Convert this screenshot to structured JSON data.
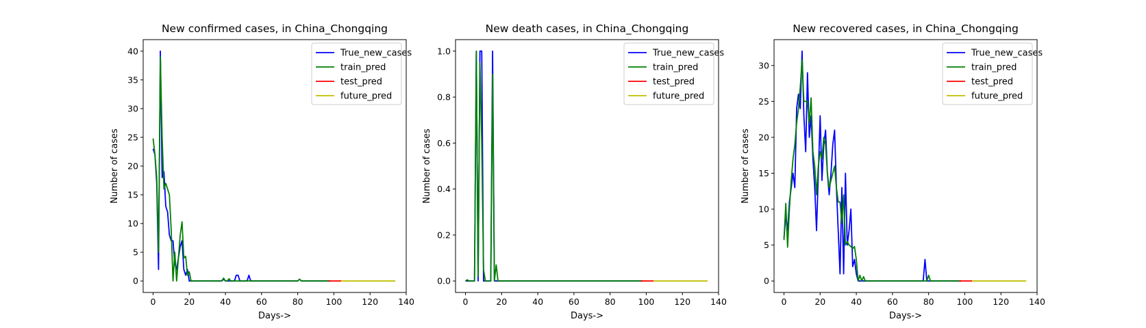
{
  "chart_data": [
    {
      "type": "line",
      "title": "New confirmed cases, in China_Chongqing",
      "xlabel": "Days->",
      "ylabel": "Number of cases",
      "xlim": [
        -5.5,
        140
      ],
      "ylim": [
        -2,
        42
      ],
      "xticks": [
        0,
        20,
        40,
        60,
        80,
        100,
        120,
        140
      ],
      "yticks": [
        0,
        5,
        10,
        15,
        20,
        25,
        30,
        35,
        40
      ],
      "grid": false,
      "legend_position": "top-right",
      "series": [
        {
          "name": "True_new_cases",
          "color": "#0000ff",
          "points": [
            [
              0,
              23
            ],
            [
              1,
              22
            ],
            [
              2,
              17
            ],
            [
              3,
              2
            ],
            [
              4,
              40
            ],
            [
              5,
              18
            ],
            [
              6,
              19
            ],
            [
              7,
              13
            ],
            [
              8,
              12
            ],
            [
              9,
              8
            ],
            [
              10,
              7
            ],
            [
              11,
              7
            ],
            [
              12,
              3
            ],
            [
              13,
              2
            ],
            [
              14,
              4
            ],
            [
              15,
              6
            ],
            [
              16,
              7
            ],
            [
              17,
              2
            ],
            [
              18,
              1
            ],
            [
              19,
              2
            ],
            [
              20,
              0
            ],
            [
              38,
              0
            ],
            [
              39,
              0.3
            ],
            [
              40,
              0
            ],
            [
              45,
              0
            ],
            [
              46,
              1
            ],
            [
              47,
              1
            ],
            [
              48,
              0
            ],
            [
              52,
              0
            ],
            [
              53,
              1
            ],
            [
              54,
              0
            ],
            [
              80,
              0
            ],
            [
              81,
              0.3
            ],
            [
              82,
              0
            ],
            [
              98,
              0
            ]
          ]
        },
        {
          "name": "train_pred",
          "color": "#008000",
          "points": [
            [
              0,
              24.8
            ],
            [
              1,
              22
            ],
            [
              2,
              18
            ],
            [
              3,
              5
            ],
            [
              4,
              39
            ],
            [
              5,
              25
            ],
            [
              6,
              16
            ],
            [
              7,
              17
            ],
            [
              8,
              16
            ],
            [
              9,
              15
            ],
            [
              10,
              9
            ],
            [
              11,
              0
            ],
            [
              12,
              5
            ],
            [
              13,
              0
            ],
            [
              14,
              4
            ],
            [
              15,
              8
            ],
            [
              16,
              10.3
            ],
            [
              17,
              4
            ],
            [
              18,
              4.3
            ],
            [
              19,
              1
            ],
            [
              20,
              1.6
            ],
            [
              21,
              0
            ],
            [
              38,
              0
            ],
            [
              39,
              0.5
            ],
            [
              40,
              0
            ],
            [
              41,
              0
            ],
            [
              42,
              0.4
            ],
            [
              43,
              0
            ],
            [
              80,
              0
            ],
            [
              81,
              0.3
            ],
            [
              82,
              0
            ],
            [
              98,
              0
            ]
          ]
        },
        {
          "name": "test_pred",
          "color": "#ff0000",
          "points": [
            [
              97,
              0
            ],
            [
              104,
              0
            ]
          ]
        },
        {
          "name": "future_pred",
          "color": "#bfbf00",
          "points": [
            [
              104,
              0
            ],
            [
              134,
              0
            ]
          ]
        }
      ]
    },
    {
      "type": "line",
      "title": "New death cases, in China_Chongqing",
      "xlabel": "Days->",
      "ylabel": "Number of cases",
      "xlim": [
        -5.5,
        140
      ],
      "ylim": [
        -0.05,
        1.05
      ],
      "xticks": [
        0,
        20,
        40,
        60,
        80,
        100,
        120,
        140
      ],
      "yticks": [
        "0.0",
        "0.2",
        "0.4",
        "0.6",
        "0.8",
        "1.0"
      ],
      "grid": false,
      "legend_position": "top-right",
      "series": [
        {
          "name": "True_new_cases",
          "color": "#0000ff",
          "points": [
            [
              0,
              0
            ],
            [
              5,
              0
            ],
            [
              6,
              1
            ],
            [
              7,
              0
            ],
            [
              8,
              1
            ],
            [
              9,
              1
            ],
            [
              10,
              0
            ],
            [
              14,
              0
            ],
            [
              15,
              1
            ],
            [
              16,
              0
            ],
            [
              98,
              0
            ]
          ]
        },
        {
          "name": "train_pred",
          "color": "#008000",
          "points": [
            [
              0,
              0
            ],
            [
              1,
              0.005
            ],
            [
              2,
              0
            ],
            [
              5,
              0
            ],
            [
              6,
              1
            ],
            [
              7,
              0.02
            ],
            [
              8,
              0.95
            ],
            [
              9,
              0.6
            ],
            [
              10,
              0.05
            ],
            [
              11,
              0
            ],
            [
              14,
              0
            ],
            [
              15,
              0.9
            ],
            [
              16,
              0
            ],
            [
              17,
              0.07
            ],
            [
              18,
              0
            ],
            [
              98,
              0
            ]
          ]
        },
        {
          "name": "test_pred",
          "color": "#ff0000",
          "points": [
            [
              97,
              0
            ],
            [
              104,
              0
            ]
          ]
        },
        {
          "name": "future_pred",
          "color": "#bfbf00",
          "points": [
            [
              104,
              0
            ],
            [
              134,
              0
            ]
          ]
        }
      ]
    },
    {
      "type": "line",
      "title": "New recovered cases, in China_Chongqing",
      "xlabel": "Days->",
      "ylabel": "Number of cases",
      "xlim": [
        -5.5,
        140
      ],
      "ylim": [
        -1.6,
        33.6
      ],
      "xticks": [
        0,
        20,
        40,
        60,
        80,
        100,
        120,
        140
      ],
      "yticks": [
        0,
        5,
        10,
        15,
        20,
        25,
        30
      ],
      "grid": false,
      "legend_position": "top-right",
      "series": [
        {
          "name": "True_new_cases",
          "color": "#0000ff",
          "points": [
            [
              0,
              6
            ],
            [
              1,
              9
            ],
            [
              2,
              7
            ],
            [
              3,
              11
            ],
            [
              4,
              13
            ],
            [
              5,
              15
            ],
            [
              6,
              13
            ],
            [
              7,
              24
            ],
            [
              8,
              26
            ],
            [
              9,
              24
            ],
            [
              10,
              32
            ],
            [
              11,
              23
            ],
            [
              12,
              18
            ],
            [
              13,
              29
            ],
            [
              14,
              20
            ],
            [
              15,
              23
            ],
            [
              16,
              17
            ],
            [
              17,
              13
            ],
            [
              18,
              7
            ],
            [
              19,
              15
            ],
            [
              20,
              23
            ],
            [
              21,
              14
            ],
            [
              22,
              19
            ],
            [
              23,
              21
            ],
            [
              24,
              15
            ],
            [
              25,
              12
            ],
            [
              26,
              15
            ],
            [
              27,
              19
            ],
            [
              28,
              21
            ],
            [
              29,
              13
            ],
            [
              30,
              7
            ],
            [
              31,
              1
            ],
            [
              32,
              13
            ],
            [
              33,
              1
            ],
            [
              34,
              15
            ],
            [
              35,
              5
            ],
            [
              36,
              7
            ],
            [
              37,
              10
            ],
            [
              38,
              2
            ],
            [
              39,
              3
            ],
            [
              40,
              1
            ],
            [
              41,
              0
            ],
            [
              77,
              0
            ],
            [
              78,
              3
            ],
            [
              79,
              0
            ],
            [
              98,
              0
            ]
          ]
        },
        {
          "name": "train_pred",
          "color": "#008000",
          "points": [
            [
              0,
              5.7
            ],
            [
              1,
              10.8
            ],
            [
              2,
              4.7
            ],
            [
              3,
              10
            ],
            [
              4,
              14
            ],
            [
              5,
              17
            ],
            [
              6,
              19
            ],
            [
              7,
              22
            ],
            [
              8,
              24
            ],
            [
              9,
              27
            ],
            [
              10,
              30.8
            ],
            [
              11,
              25
            ],
            [
              12,
              25
            ],
            [
              13,
              25
            ],
            [
              14,
              22
            ],
            [
              15,
              25.5
            ],
            [
              16,
              18
            ],
            [
              17,
              16
            ],
            [
              18,
              12
            ],
            [
              19,
              16
            ],
            [
              20,
              18
            ],
            [
              21,
              17
            ],
            [
              22,
              20
            ],
            [
              23,
              19
            ],
            [
              24,
              15
            ],
            [
              25,
              13
            ],
            [
              26,
              14
            ],
            [
              27,
              15
            ],
            [
              28,
              16
            ],
            [
              29,
              13
            ],
            [
              30,
              11
            ],
            [
              31,
              11
            ],
            [
              32,
              8
            ],
            [
              33,
              12
            ],
            [
              34,
              5
            ],
            [
              35,
              5.5
            ],
            [
              36,
              5
            ],
            [
              37,
              4.8
            ],
            [
              38,
              4.5
            ],
            [
              39,
              4.8
            ],
            [
              40,
              3
            ],
            [
              41,
              0
            ],
            [
              42,
              0.8
            ],
            [
              43,
              0
            ],
            [
              44,
              0.6
            ],
            [
              45,
              0
            ],
            [
              79,
              0
            ],
            [
              80,
              0.8
            ],
            [
              81,
              0
            ],
            [
              98,
              0
            ]
          ]
        },
        {
          "name": "test_pred",
          "color": "#ff0000",
          "points": [
            [
              97,
              0
            ],
            [
              104,
              0
            ]
          ]
        },
        {
          "name": "future_pred",
          "color": "#bfbf00",
          "points": [
            [
              104,
              0
            ],
            [
              134,
              0
            ]
          ]
        }
      ]
    }
  ]
}
